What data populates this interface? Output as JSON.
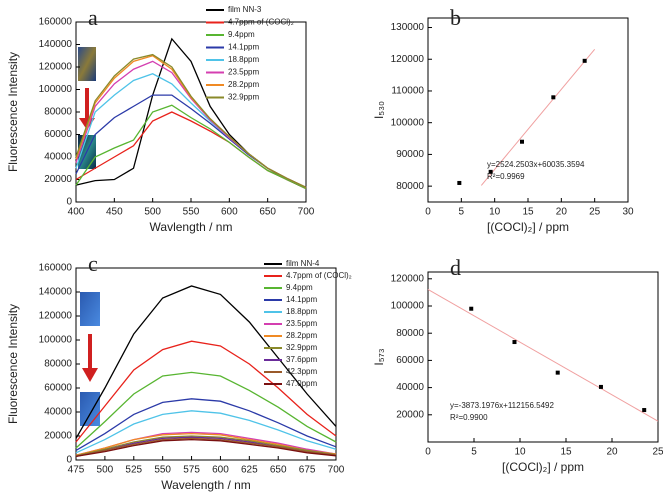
{
  "chart_data": [
    {
      "type": "line",
      "label": "a",
      "xlabel": "Wavlength / nm",
      "ylabel": "Fluorescence Intensity",
      "xlim": [
        400,
        700
      ],
      "ylim": [
        0,
        160000
      ],
      "xticks": [
        400,
        450,
        500,
        550,
        600,
        650,
        700
      ],
      "yticks": [
        0,
        20000,
        40000,
        60000,
        80000,
        100000,
        120000,
        140000,
        160000
      ],
      "x": [
        400,
        425,
        450,
        475,
        500,
        525,
        550,
        575,
        600,
        625,
        650,
        675,
        700
      ],
      "series": [
        {
          "name": "film NN-3",
          "color": "#000000",
          "values": [
            15000,
            19000,
            20000,
            30000,
            95000,
            145000,
            125000,
            85000,
            60000,
            43000,
            30000,
            20000,
            12000
          ]
        },
        {
          "name": "4.7ppm of (COCl)₂",
          "color": "#e8221b",
          "values": [
            20000,
            30000,
            40000,
            50000,
            72000,
            80000,
            72000,
            63000,
            53000,
            40000,
            28000,
            20000,
            12000
          ]
        },
        {
          "name": "9.4ppm",
          "color": "#58b531",
          "values": [
            15000,
            40000,
            48000,
            55000,
            80000,
            86000,
            75000,
            65000,
            53000,
            40000,
            28000,
            20000,
            12000
          ]
        },
        {
          "name": "14.1ppm",
          "color": "#2b3aa8",
          "values": [
            25000,
            60000,
            75000,
            85000,
            95000,
            95000,
            83000,
            70000,
            56000,
            42000,
            30000,
            21000,
            13000
          ]
        },
        {
          "name": "18.8ppm",
          "color": "#4fc3e8",
          "values": [
            30000,
            80000,
            95000,
            108000,
            114000,
            105000,
            88000,
            72000,
            57000,
            43000,
            30000,
            21000,
            13000
          ]
        },
        {
          "name": "23.5ppm",
          "color": "#d43fb0",
          "values": [
            35000,
            85000,
            105000,
            118000,
            125000,
            115000,
            92000,
            73000,
            57000,
            43000,
            30000,
            21000,
            13000
          ]
        },
        {
          "name": "28.2ppm",
          "color": "#f08a24",
          "values": [
            38000,
            88000,
            110000,
            125000,
            130000,
            118000,
            93000,
            74000,
            58000,
            43000,
            30000,
            21000,
            13000
          ]
        },
        {
          "name": "32.9ppm",
          "color": "#8a8a2a",
          "values": [
            40000,
            90000,
            112000,
            127000,
            131000,
            120000,
            94000,
            74000,
            58000,
            43000,
            30000,
            21000,
            13000
          ]
        }
      ]
    },
    {
      "type": "scatter",
      "label": "b",
      "xlabel": "[(COCl)₂] / ppm",
      "ylabel": "I₅₃₀",
      "xlim": [
        0,
        30
      ],
      "ylim": [
        75000,
        133000
      ],
      "xticks": [
        0,
        5,
        10,
        15,
        20,
        25,
        30
      ],
      "yticks": [
        80000,
        90000,
        100000,
        110000,
        120000,
        130000
      ],
      "x": [
        4.7,
        9.4,
        14.1,
        18.8,
        23.5
      ],
      "values": [
        81000,
        84500,
        94000,
        108000,
        119500
      ],
      "color": "#000000",
      "fit_line": {
        "x": [
          8,
          25
        ],
        "y": [
          80229,
          123141
        ],
        "color": "#f0a0a0"
      },
      "annotations": [
        "y=2524.2503x+60035.3594",
        "R²=0.9969"
      ]
    },
    {
      "type": "line",
      "label": "c",
      "xlabel": "Wavelength / nm",
      "ylabel": "Fluorescence Intensity",
      "xlim": [
        475,
        700
      ],
      "ylim": [
        0,
        160000
      ],
      "xticks": [
        475,
        500,
        525,
        550,
        575,
        600,
        625,
        650,
        675,
        700
      ],
      "yticks": [
        0,
        20000,
        40000,
        60000,
        80000,
        100000,
        120000,
        140000,
        160000
      ],
      "x": [
        475,
        500,
        525,
        550,
        575,
        600,
        625,
        650,
        675,
        700
      ],
      "series": [
        {
          "name": "film NN-4",
          "color": "#000000",
          "values": [
            18000,
            60000,
            105000,
            135000,
            145000,
            138000,
            115000,
            85000,
            55000,
            28000
          ]
        },
        {
          "name": "4.7ppm of (COCl)₂",
          "color": "#e8221b",
          "values": [
            15000,
            45000,
            75000,
            92000,
            99000,
            95000,
            80000,
            60000,
            38000,
            20000
          ]
        },
        {
          "name": "9.4ppm",
          "color": "#58b531",
          "values": [
            10000,
            32000,
            55000,
            70000,
            73000,
            70000,
            58000,
            44000,
            28000,
            15000
          ]
        },
        {
          "name": "14.1ppm",
          "color": "#2b3aa8",
          "values": [
            8000,
            22000,
            38000,
            48000,
            51000,
            49000,
            41000,
            31000,
            20000,
            11000
          ]
        },
        {
          "name": "18.8ppm",
          "color": "#4fc3e8",
          "values": [
            6000,
            17000,
            30000,
            38000,
            41000,
            39000,
            33000,
            25000,
            16000,
            9000
          ]
        },
        {
          "name": "23.5ppm",
          "color": "#d43fb0",
          "values": [
            4000,
            10000,
            17000,
            22000,
            23000,
            22000,
            18000,
            14000,
            9000,
            5000
          ]
        },
        {
          "name": "28.2ppm",
          "color": "#f08a24",
          "values": [
            4000,
            10000,
            17000,
            21000,
            22000,
            21000,
            17000,
            13000,
            8000,
            5000
          ]
        },
        {
          "name": "32.9ppm",
          "color": "#8a8a2a",
          "values": [
            3500,
            9000,
            15000,
            19000,
            20000,
            19000,
            16000,
            12000,
            8000,
            4500
          ]
        },
        {
          "name": "37.6ppm",
          "color": "#6a2c9a",
          "values": [
            3000,
            8000,
            14000,
            18000,
            19000,
            18000,
            15000,
            11000,
            7000,
            4000
          ]
        },
        {
          "name": "42.3ppm",
          "color": "#9a5a2a",
          "values": [
            3000,
            8000,
            13000,
            17000,
            18000,
            17000,
            14000,
            11000,
            7000,
            4000
          ]
        },
        {
          "name": "47.0ppm",
          "color": "#7a1010",
          "values": [
            3000,
            7000,
            12000,
            16000,
            17000,
            16000,
            13000,
            10000,
            6000,
            3500
          ]
        }
      ]
    },
    {
      "type": "scatter",
      "label": "d",
      "xlabel": "[(COCl)₂] / ppm",
      "ylabel": "I₅₇₃",
      "xlim": [
        0,
        25
      ],
      "ylim": [
        0,
        125000
      ],
      "xticks": [
        0,
        5,
        10,
        15,
        20,
        25
      ],
      "yticks": [
        20000,
        40000,
        60000,
        80000,
        100000,
        120000
      ],
      "x": [
        4.7,
        9.4,
        14.1,
        18.8,
        23.5
      ],
      "values": [
        98000,
        73500,
        51000,
        40500,
        23500
      ],
      "color": "#000000",
      "fit_line": {
        "x": [
          0,
          25
        ],
        "y": [
          112157,
          15327
        ],
        "color": "#f0a0a0"
      },
      "annotations": [
        "y=-3873.1976x+112156.5492",
        "R²=0.9900"
      ]
    }
  ]
}
